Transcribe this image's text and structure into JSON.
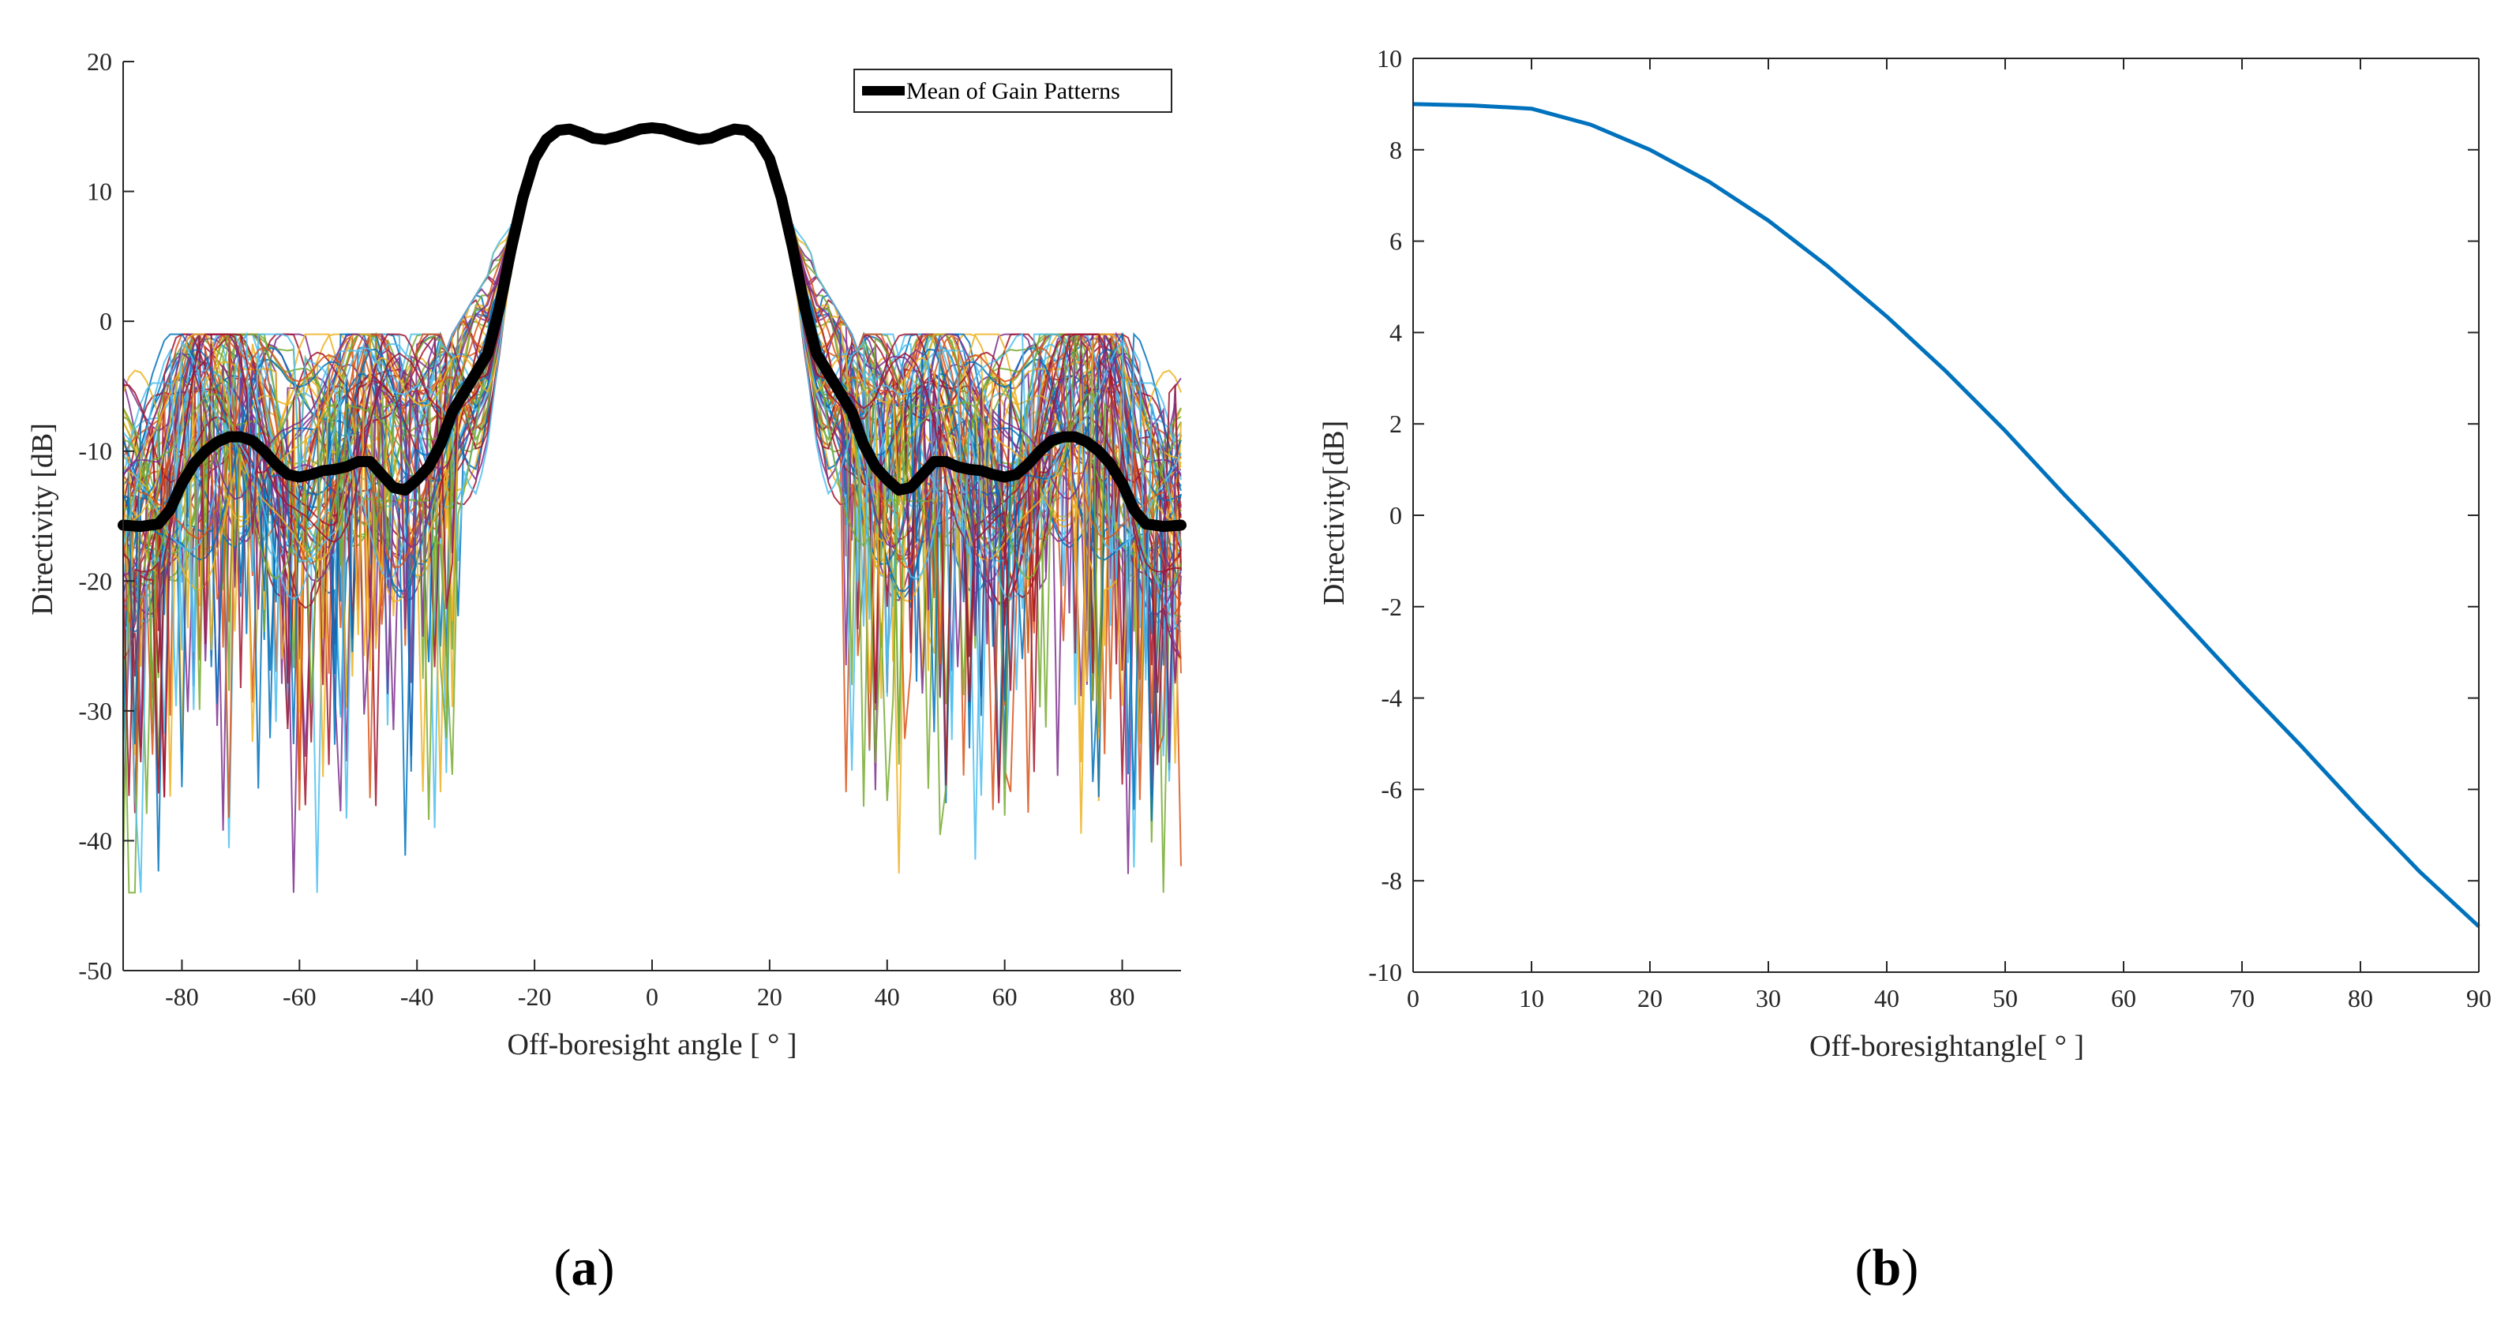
{
  "figure": {
    "panel_labels": [
      {
        "open": "(",
        "letter": "a",
        "close": ")"
      },
      {
        "open": "(",
        "letter": "b",
        "close": ")"
      }
    ]
  },
  "chart_data": [
    {
      "type": "line",
      "panel": "a",
      "title": "",
      "xlabel": "Off-boresight angle [ ° ]",
      "ylabel": "Directivity [dB]",
      "xlim": [
        -90,
        90
      ],
      "ylim": [
        -50,
        20
      ],
      "xticks": [
        -80,
        -60,
        -40,
        -20,
        0,
        20,
        40,
        60,
        80
      ],
      "yticks": [
        -50,
        -40,
        -30,
        -20,
        -10,
        0,
        10,
        20
      ],
      "grid": false,
      "legend": {
        "position": "top-right",
        "entries": [
          "Mean of Gain Patterns"
        ]
      },
      "series": [
        {
          "name": "Mean of Gain Patterns",
          "color": "#000000",
          "x": [
            -90,
            -87,
            -84,
            -82,
            -80,
            -78,
            -76,
            -74,
            -72,
            -70,
            -68,
            -66,
            -64,
            -62,
            -60,
            -58,
            -56,
            -54,
            -52,
            -50,
            -48,
            -46,
            -44,
            -42,
            -40,
            -38,
            -36,
            -34,
            -32,
            -30,
            -28,
            -26,
            -24,
            -22,
            -20,
            -18,
            -16,
            -14,
            -12,
            -10,
            -8,
            -6,
            -4,
            -2,
            0,
            2,
            4,
            6,
            8,
            10,
            12,
            14,
            16,
            18,
            20,
            22,
            24,
            26,
            28,
            30,
            32,
            34,
            36,
            38,
            40,
            42,
            44,
            46,
            48,
            50,
            52,
            54,
            56,
            58,
            60,
            62,
            64,
            66,
            68,
            70,
            72,
            74,
            76,
            78,
            80,
            82,
            84,
            87,
            90
          ],
          "y": [
            -15.7,
            -15.8,
            -15.6,
            -14.5,
            -12.5,
            -11.0,
            -10.0,
            -9.3,
            -8.9,
            -8.9,
            -9.2,
            -10.0,
            -11.0,
            -11.8,
            -12.0,
            -11.8,
            -11.5,
            -11.4,
            -11.2,
            -10.8,
            -10.8,
            -11.8,
            -12.8,
            -13.0,
            -12.2,
            -11.2,
            -9.5,
            -7.0,
            -5.5,
            -4.0,
            -2.5,
            1.0,
            5.5,
            9.5,
            12.5,
            14.0,
            14.7,
            14.8,
            14.5,
            14.1,
            14.0,
            14.2,
            14.5,
            14.8,
            14.9,
            14.8,
            14.5,
            14.2,
            14.0,
            14.1,
            14.5,
            14.8,
            14.7,
            14.0,
            12.5,
            9.5,
            5.5,
            1.0,
            -2.5,
            -4.0,
            -5.5,
            -7.0,
            -9.5,
            -11.2,
            -12.2,
            -13.0,
            -12.8,
            -11.8,
            -10.8,
            -10.8,
            -11.2,
            -11.4,
            -11.5,
            -11.8,
            -12.0,
            -11.8,
            -11.0,
            -10.0,
            -9.2,
            -8.9,
            -8.9,
            -9.3,
            -10.0,
            -11.0,
            -12.5,
            -14.5,
            -15.6,
            -15.8,
            -15.7
          ]
        }
      ]
    },
    {
      "type": "line",
      "panel": "b",
      "title": "",
      "xlabel": "Off-boresightangle[ ° ]",
      "ylabel": "Directivity[dB]",
      "xlim": [
        0,
        90
      ],
      "ylim": [
        -10,
        10
      ],
      "xticks": [
        0,
        10,
        20,
        30,
        40,
        50,
        60,
        70,
        80,
        90
      ],
      "yticks": [
        -10,
        -8,
        -6,
        -4,
        -2,
        0,
        2,
        4,
        6,
        8,
        10
      ],
      "grid": false,
      "series": [
        {
          "color": "#0072bd",
          "x": [
            0,
            5,
            10,
            15,
            20,
            25,
            30,
            35,
            40,
            45,
            50,
            55,
            60,
            65,
            70,
            75,
            80,
            85,
            90
          ],
          "y": [
            9.0,
            8.97,
            8.9,
            8.55,
            8.0,
            7.3,
            6.45,
            5.45,
            4.35,
            3.15,
            1.85,
            0.45,
            -0.9,
            -2.3,
            -3.7,
            -5.05,
            -6.45,
            -7.8,
            -9.0
          ]
        }
      ]
    }
  ]
}
